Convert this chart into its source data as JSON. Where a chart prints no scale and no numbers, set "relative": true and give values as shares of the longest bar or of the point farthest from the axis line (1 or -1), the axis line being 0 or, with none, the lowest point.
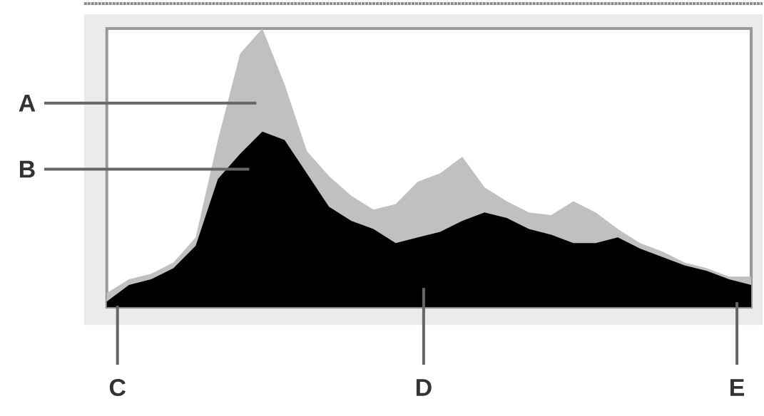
{
  "chart_data": {
    "type": "area",
    "relative": true,
    "categories": [
      null,
      null,
      null,
      null,
      null,
      null,
      null,
      null,
      null,
      null,
      null,
      null,
      null,
      null,
      null,
      null,
      null,
      null,
      null,
      null,
      null,
      null,
      null,
      null,
      null,
      null,
      null,
      null,
      null,
      null
    ],
    "series": [
      {
        "color": "#c0c0c0",
        "values": [
          0.05,
          0.1,
          0.12,
          0.16,
          0.25,
          0.6,
          0.91,
          1.0,
          0.8,
          0.56,
          0.47,
          0.4,
          0.35,
          0.37,
          0.45,
          0.48,
          0.54,
          0.43,
          0.38,
          0.34,
          0.33,
          0.38,
          0.34,
          0.28,
          0.23,
          0.2,
          0.16,
          0.14,
          0.11,
          0.11
        ]
      },
      {
        "color": "#000000",
        "values": [
          0.02,
          0.08,
          0.1,
          0.14,
          0.22,
          0.46,
          0.55,
          0.63,
          0.6,
          0.48,
          0.36,
          0.31,
          0.28,
          0.23,
          0.25,
          0.27,
          0.31,
          0.34,
          0.32,
          0.28,
          0.26,
          0.23,
          0.23,
          0.25,
          0.21,
          0.18,
          0.15,
          0.13,
          0.1,
          0.08
        ]
      }
    ],
    "annotations": [
      "A",
      "B",
      "C",
      "D",
      "E"
    ]
  }
}
